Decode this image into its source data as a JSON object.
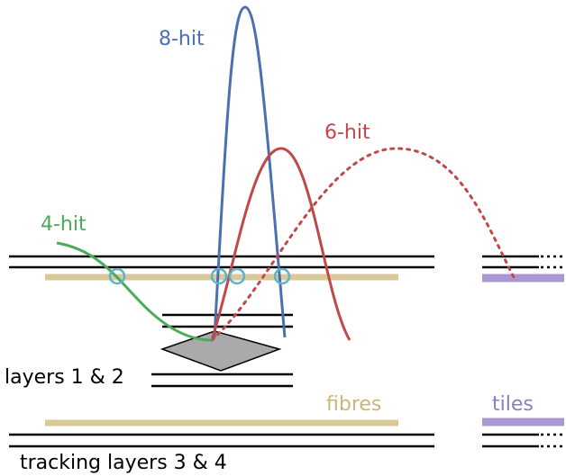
{
  "labels": {
    "hit8": "8-hit",
    "hit6": "6-hit",
    "hit4": "4-hit",
    "layers12": "layers 1 & 2",
    "fibres": "fibres",
    "tiles": "tiles",
    "layers34": "tracking layers 3 & 4"
  }
}
